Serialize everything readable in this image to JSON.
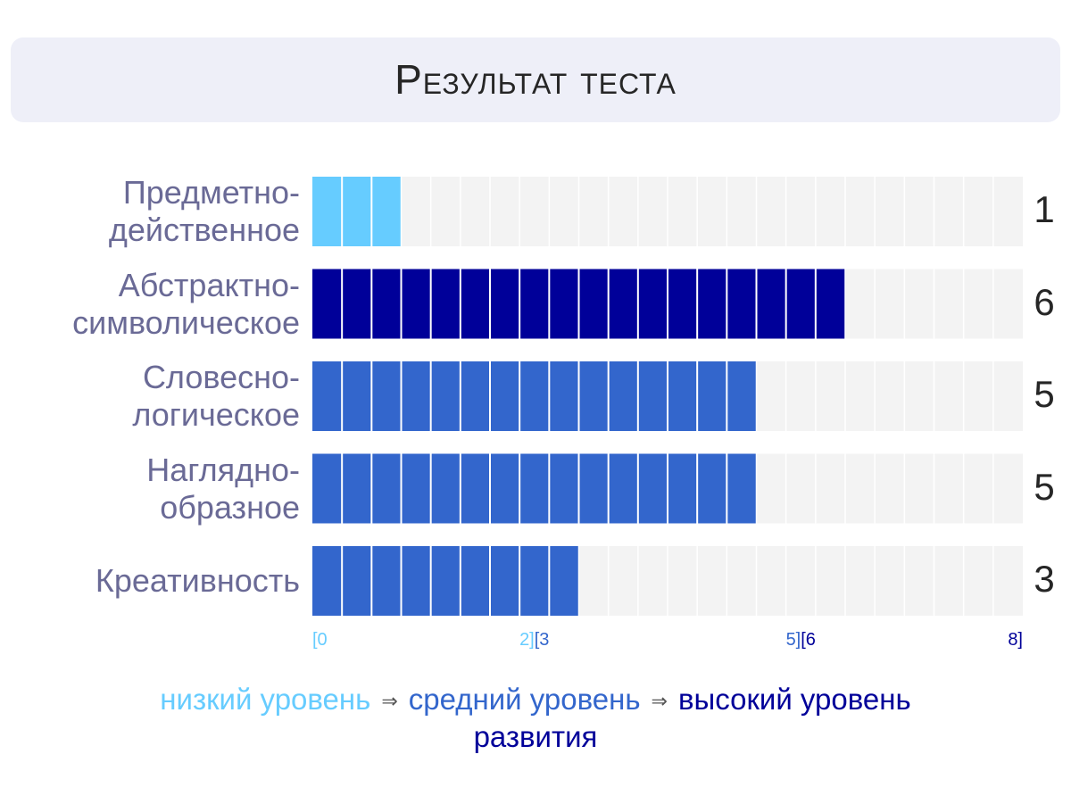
{
  "title": "Результат теста",
  "colors": {
    "track": "#f3f3f3",
    "low": "#66ccff",
    "medium": "#3366cc",
    "high": "#000099",
    "label": "#6a6a96"
  },
  "chart_data": {
    "type": "bar",
    "orientation": "horizontal",
    "xlim": [
      0,
      8
    ],
    "segments_per_unit": 3,
    "categories": [
      [
        "Предметно-",
        "действенное"
      ],
      [
        "Абстрактно-",
        "символическое"
      ],
      [
        "Словесно-",
        "логическое"
      ],
      [
        "Наглядно-",
        "образное"
      ],
      [
        "Креативность"
      ]
    ],
    "values": [
      1,
      6,
      5,
      5,
      3
    ],
    "value_labels": [
      "1",
      "6",
      "5",
      "5",
      "3"
    ],
    "levels": [
      "low",
      "high",
      "medium",
      "medium",
      "medium"
    ],
    "ticks": [
      {
        "text": "[0",
        "level": "low"
      },
      {
        "text": "2]",
        "level": "low"
      },
      {
        "text": "[3",
        "level": "medium"
      },
      {
        "text": "5]",
        "level": "medium"
      },
      {
        "text": "[6",
        "level": "high"
      },
      {
        "text": "8]",
        "level": "high"
      }
    ],
    "legend": {
      "low": "низкий уровень",
      "arrow": "⇒",
      "medium": "средний уровень",
      "high": "высокий уровень",
      "suffix": "развития"
    }
  }
}
